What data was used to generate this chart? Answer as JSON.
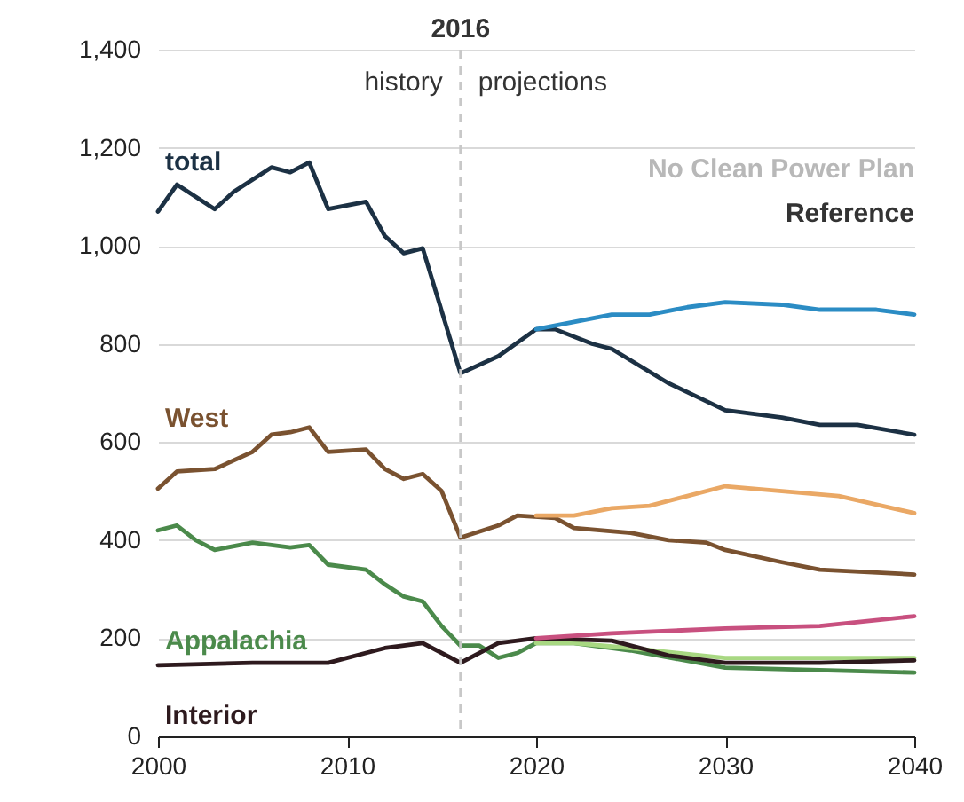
{
  "chart_data": {
    "type": "line",
    "xlim": [
      2000,
      2040
    ],
    "xticks": [
      2000,
      2010,
      2020,
      2030,
      2040
    ],
    "ylim": [
      0,
      1400
    ],
    "yticks": [
      0,
      {
        "value": 200,
        "label": "200"
      },
      {
        "value": 400,
        "label": "400"
      },
      {
        "value": 600,
        "label": "600"
      },
      {
        "value": 800,
        "label": "800"
      },
      {
        "value": 1000,
        "label": "1,000"
      },
      {
        "value": 1200,
        "label": "1,200"
      },
      {
        "value": 1400,
        "label": "1,400"
      }
    ],
    "grid": "y",
    "ref_lines": [
      {
        "axis": "x",
        "value": 2016,
        "label": "2016",
        "color": "#c8c8c8",
        "line_style": "dashed"
      }
    ],
    "annotations": [
      "history",
      "projections",
      "No Clean Power Plan",
      "Reference"
    ],
    "series": [
      {
        "name": "total",
        "color": "#1c3144",
        "x": [
          2000,
          2001,
          2003,
          2004,
          2006,
          2007,
          2008,
          2009,
          2011,
          2012,
          2013,
          2014,
          2016,
          2018,
          2020,
          2021,
          2023,
          2024,
          2027,
          2030,
          2033,
          2035,
          2037,
          2040
        ],
        "values": [
          1070,
          1125,
          1075,
          1110,
          1160,
          1150,
          1170,
          1075,
          1090,
          1020,
          985,
          995,
          740,
          775,
          830,
          830,
          800,
          790,
          720,
          665,
          650,
          635,
          635,
          615
        ]
      },
      {
        "color": "#2b8cc4",
        "x": [
          2020,
          2022,
          2024,
          2026,
          2028,
          2030,
          2033,
          2035,
          2038,
          2040
        ],
        "values": [
          830,
          845,
          860,
          860,
          875,
          885,
          880,
          870,
          870,
          860
        ]
      },
      {
        "name": "West",
        "color": "#7a5230",
        "x": [
          2000,
          2001,
          2003,
          2005,
          2006,
          2007,
          2008,
          2009,
          2011,
          2012,
          2013,
          2014,
          2015,
          2016,
          2018,
          2019,
          2021,
          2022,
          2025,
          2027,
          2029,
          2030,
          2033,
          2035,
          2040
        ],
        "values": [
          505,
          540,
          545,
          580,
          615,
          620,
          630,
          580,
          585,
          545,
          525,
          535,
          500,
          405,
          430,
          450,
          445,
          425,
          415,
          400,
          395,
          380,
          355,
          340,
          330
        ]
      },
      {
        "color": "#eaa865",
        "x": [
          2020,
          2022,
          2024,
          2026,
          2028,
          2030,
          2033,
          2036,
          2040
        ],
        "values": [
          450,
          450,
          465,
          470,
          490,
          510,
          500,
          490,
          455
        ]
      },
      {
        "name": "Appalachia",
        "color": "#4b8a4b",
        "x": [
          2000,
          2001,
          2002,
          2003,
          2005,
          2007,
          2008,
          2009,
          2011,
          2012,
          2013,
          2014,
          2015,
          2016,
          2017,
          2018,
          2019,
          2020,
          2022,
          2025,
          2030,
          2035,
          2040
        ],
        "values": [
          420,
          430,
          400,
          380,
          395,
          385,
          390,
          350,
          340,
          310,
          285,
          275,
          225,
          185,
          185,
          160,
          170,
          190,
          190,
          175,
          140,
          135,
          130
        ]
      },
      {
        "color": "#a8d882",
        "x": [
          2020,
          2022,
          2025,
          2030,
          2035,
          2040
        ],
        "values": [
          190,
          190,
          180,
          160,
          160,
          160
        ]
      },
      {
        "name": "Interior",
        "color": "#2e1a1e",
        "x": [
          2000,
          2005,
          2009,
          2011,
          2012,
          2014,
          2016,
          2018,
          2020,
          2024,
          2027,
          2030,
          2035,
          2040
        ],
        "values": [
          145,
          150,
          150,
          170,
          180,
          190,
          150,
          190,
          200,
          195,
          165,
          150,
          150,
          155
        ]
      },
      {
        "color": "#c8507f",
        "x": [
          2020,
          2024,
          2030,
          2035,
          2040
        ],
        "values": [
          200,
          210,
          220,
          225,
          245
        ]
      }
    ]
  }
}
